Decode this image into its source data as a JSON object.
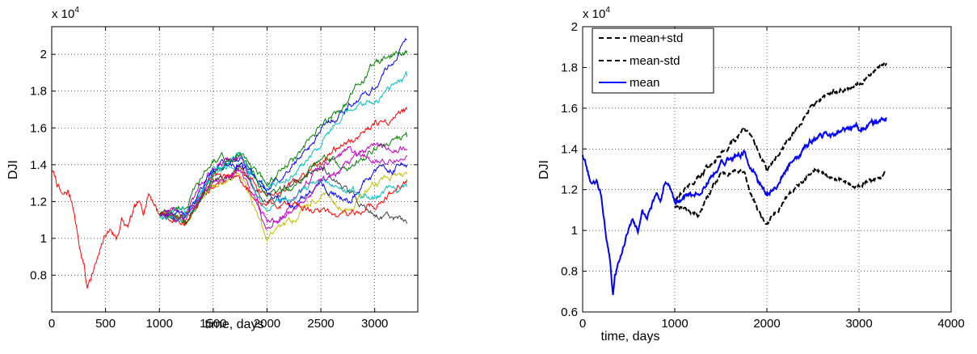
{
  "chart_data": [
    {
      "type": "line",
      "xlabel": "time, days",
      "ylabel": "DJI",
      "y_multiplier_label": "x 10",
      "y_multiplier_exponent": "4",
      "xlim": [
        0,
        3400
      ],
      "ylim": [
        0.6,
        2.15
      ],
      "xticks": [
        0,
        500,
        1000,
        1500,
        2000,
        2500,
        3000
      ],
      "xtick_labels": [
        "0",
        "500",
        "1000",
        "1500",
        "2000",
        "2500",
        "3000"
      ],
      "yticks": [
        0.8,
        1.0,
        1.2,
        1.4,
        1.6,
        1.8,
        2.0
      ],
      "ytick_labels": [
        "0.8",
        "1",
        "1.2",
        "1.4",
        "1.6",
        "1.8",
        "2"
      ],
      "grid": true,
      "history": {
        "color": "#ff0000",
        "x": [
          0,
          50,
          100,
          150,
          200,
          260,
          300,
          330,
          350,
          400,
          450,
          500,
          550,
          600,
          650,
          700,
          750,
          800,
          850,
          900,
          950,
          1000
        ],
        "y": [
          1.37,
          1.3,
          1.22,
          1.25,
          1.18,
          0.95,
          0.85,
          0.72,
          0.78,
          0.85,
          0.92,
          1.02,
          1.05,
          1.0,
          1.1,
          1.05,
          1.12,
          1.18,
          1.15,
          1.25,
          1.2,
          1.13
        ]
      },
      "simulation_x": [
        1000,
        1250,
        1500,
        1750,
        2000,
        2250,
        2500,
        2750,
        3000,
        3300
      ],
      "series": [
        {
          "color": "#0000ff",
          "values": [
            1.13,
            1.12,
            1.38,
            1.42,
            1.26,
            1.4,
            1.58,
            1.72,
            1.82,
            2.08
          ]
        },
        {
          "color": "#008000",
          "values": [
            1.13,
            1.18,
            1.42,
            1.45,
            1.3,
            1.42,
            1.6,
            1.75,
            1.95,
            2.02
          ]
        },
        {
          "color": "#00bfbf",
          "values": [
            1.13,
            1.15,
            1.35,
            1.4,
            1.28,
            1.35,
            1.52,
            1.68,
            1.75,
            1.88
          ]
        },
        {
          "color": "#ff0000",
          "values": [
            1.13,
            1.1,
            1.3,
            1.38,
            1.22,
            1.3,
            1.42,
            1.52,
            1.62,
            1.7
          ]
        },
        {
          "color": "#bf00bf",
          "values": [
            1.13,
            1.14,
            1.4,
            1.45,
            1.05,
            1.22,
            1.38,
            1.48,
            1.42,
            1.45
          ]
        },
        {
          "color": "#bfbf00",
          "values": [
            1.13,
            1.12,
            1.28,
            1.35,
            1.0,
            1.1,
            1.25,
            1.15,
            1.3,
            1.35
          ]
        },
        {
          "color": "#404040",
          "values": [
            1.13,
            1.1,
            1.32,
            1.38,
            1.2,
            1.3,
            1.4,
            1.25,
            1.15,
            1.08
          ]
        },
        {
          "color": "#ff0000",
          "values": [
            1.13,
            1.08,
            1.35,
            1.3,
            1.18,
            1.2,
            1.15,
            1.12,
            1.18,
            1.32
          ]
        },
        {
          "color": "#0000ff",
          "values": [
            1.13,
            1.11,
            1.36,
            1.42,
            1.25,
            1.18,
            1.3,
            1.2,
            1.35,
            1.4
          ]
        },
        {
          "color": "#008000",
          "values": [
            1.13,
            1.09,
            1.33,
            1.48,
            1.22,
            1.28,
            1.45,
            1.38,
            1.48,
            1.55
          ]
        },
        {
          "color": "#00bfbf",
          "values": [
            1.13,
            1.13,
            1.36,
            1.44,
            1.15,
            1.24,
            1.32,
            1.28,
            1.22,
            1.28
          ]
        },
        {
          "color": "#bf00bf",
          "values": [
            1.13,
            1.1,
            1.3,
            1.36,
            1.1,
            1.15,
            1.3,
            1.4,
            1.5,
            1.48
          ]
        }
      ]
    },
    {
      "type": "line",
      "xlabel": "time, days",
      "ylabel": "DJI",
      "y_multiplier_label": "x 10",
      "y_multiplier_exponent": "4",
      "xlim": [
        0,
        4000
      ],
      "ylim": [
        0.6,
        2.0
      ],
      "xticks": [
        0,
        1000,
        2000,
        3000,
        4000
      ],
      "xtick_labels": [
        "0",
        "1000",
        "2000",
        "3000",
        "4000"
      ],
      "yticks": [
        0.6,
        0.8,
        1.0,
        1.2,
        1.4,
        1.6,
        1.8,
        2.0
      ],
      "ytick_labels": [
        "0.6",
        "0.8",
        "1",
        "1.2",
        "1.4",
        "1.6",
        "1.8",
        "2"
      ],
      "grid": true,
      "legend_position": "top-left",
      "legend": [
        {
          "label": "mean+std",
          "color": "#000000",
          "style": "dashed"
        },
        {
          "label": "mean-std",
          "color": "#000000",
          "style": "dashed"
        },
        {
          "label": "mean",
          "color": "#0000ff",
          "style": "solid"
        }
      ],
      "series": [
        {
          "name": "mean+std",
          "color": "#000000",
          "style": "dashed",
          "x": [
            1000,
            1250,
            1500,
            1750,
            1900,
            2000,
            2250,
            2500,
            2750,
            3000,
            3300
          ],
          "y": [
            1.15,
            1.25,
            1.38,
            1.5,
            1.4,
            1.3,
            1.45,
            1.62,
            1.68,
            1.72,
            1.82
          ]
        },
        {
          "name": "mean-std",
          "color": "#000000",
          "style": "dashed",
          "x": [
            1000,
            1250,
            1500,
            1750,
            1900,
            2000,
            2250,
            2500,
            2750,
            3000,
            3300
          ],
          "y": [
            1.12,
            1.08,
            1.28,
            1.28,
            1.1,
            1.03,
            1.18,
            1.3,
            1.25,
            1.22,
            1.28
          ]
        },
        {
          "name": "mean",
          "color": "#0000ff",
          "style": "solid",
          "x": [
            0,
            50,
            100,
            150,
            200,
            260,
            300,
            330,
            350,
            400,
            450,
            500,
            550,
            600,
            650,
            700,
            750,
            800,
            850,
            900,
            950,
            1000,
            1250,
            1500,
            1750,
            1900,
            2000,
            2100,
            2250,
            2500,
            2750,
            3000,
            3300
          ],
          "y": [
            1.37,
            1.3,
            1.22,
            1.25,
            1.18,
            0.95,
            0.85,
            0.68,
            0.78,
            0.85,
            0.92,
            1.02,
            1.05,
            1.0,
            1.1,
            1.05,
            1.12,
            1.18,
            1.15,
            1.25,
            1.2,
            1.13,
            1.18,
            1.33,
            1.38,
            1.25,
            1.18,
            1.22,
            1.32,
            1.45,
            1.48,
            1.5,
            1.55
          ]
        }
      ]
    }
  ]
}
